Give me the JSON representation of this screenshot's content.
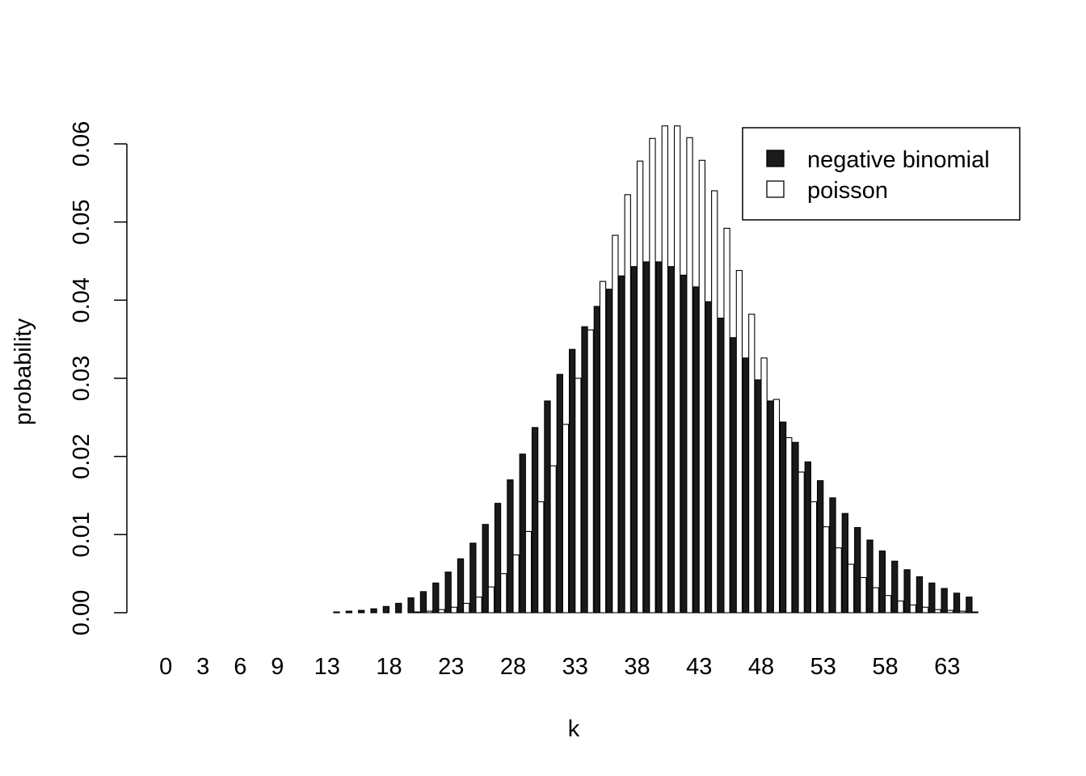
{
  "chart_data": {
    "type": "bar",
    "xlabel": "k",
    "ylabel": "probability",
    "ylim": [
      0,
      0.06
    ],
    "y_ticks": [
      "0.00",
      "0.01",
      "0.02",
      "0.03",
      "0.04",
      "0.05",
      "0.06"
    ],
    "x_tick_labels": [
      "0",
      "3",
      "6",
      "9",
      "13",
      "18",
      "23",
      "28",
      "33",
      "38",
      "43",
      "48",
      "53",
      "58",
      "63"
    ],
    "legend_position": "top-right",
    "grid": false,
    "categories": [
      0,
      1,
      2,
      3,
      4,
      5,
      6,
      7,
      8,
      9,
      10,
      11,
      12,
      13,
      14,
      15,
      16,
      17,
      18,
      19,
      20,
      21,
      22,
      23,
      24,
      25,
      26,
      27,
      28,
      29,
      30,
      31,
      32,
      33,
      34,
      35,
      36,
      37,
      38,
      39,
      40,
      41,
      42,
      43,
      44,
      45,
      46,
      47,
      48,
      49,
      50,
      51,
      52,
      53,
      54,
      55,
      56,
      57,
      58,
      59,
      60,
      61,
      62,
      63,
      64,
      65
    ],
    "series": [
      {
        "name": "negative binomial",
        "color": "#1a1a1a",
        "values": [
          0,
          0,
          0,
          0,
          0,
          0,
          0,
          0,
          0,
          0,
          0,
          0,
          0,
          0,
          0.0001,
          0.0002,
          0.0003,
          0.0005,
          0.0008,
          0.0012,
          0.0019,
          0.0027,
          0.0038,
          0.0052,
          0.0069,
          0.0089,
          0.0113,
          0.014,
          0.017,
          0.0203,
          0.0237,
          0.0271,
          0.0305,
          0.0337,
          0.0366,
          0.0392,
          0.0414,
          0.0431,
          0.0443,
          0.0449,
          0.0449,
          0.0443,
          0.0432,
          0.0417,
          0.0398,
          0.0377,
          0.0352,
          0.0326,
          0.0298,
          0.0271,
          0.0244,
          0.0218,
          0.0193,
          0.0169,
          0.0147,
          0.0127,
          0.0109,
          0.0093,
          0.0079,
          0.0066,
          0.0055,
          0.0046,
          0.0038,
          0.0031,
          0.0025,
          0.002
        ]
      },
      {
        "name": "poisson",
        "color": "#ffffff",
        "values": [
          0,
          0,
          0,
          0,
          0,
          0,
          0,
          0,
          0,
          0,
          0,
          0,
          0,
          0,
          0,
          0,
          0,
          0,
          0,
          0,
          0.0001,
          0.0002,
          0.0004,
          0.0007,
          0.0012,
          0.002,
          0.0033,
          0.005,
          0.0074,
          0.0104,
          0.0142,
          0.0188,
          0.0241,
          0.03,
          0.0362,
          0.0424,
          0.0483,
          0.0535,
          0.0578,
          0.0607,
          0.0623,
          0.0623,
          0.0608,
          0.0579,
          0.054,
          0.0492,
          0.0438,
          0.0382,
          0.0326,
          0.0273,
          0.0224,
          0.018,
          0.0142,
          0.011,
          0.0083,
          0.0062,
          0.0045,
          0.0032,
          0.0022,
          0.0015,
          0.001,
          0.0007,
          0.0004,
          0.0003,
          0.0002,
          0.0001
        ]
      }
    ]
  }
}
